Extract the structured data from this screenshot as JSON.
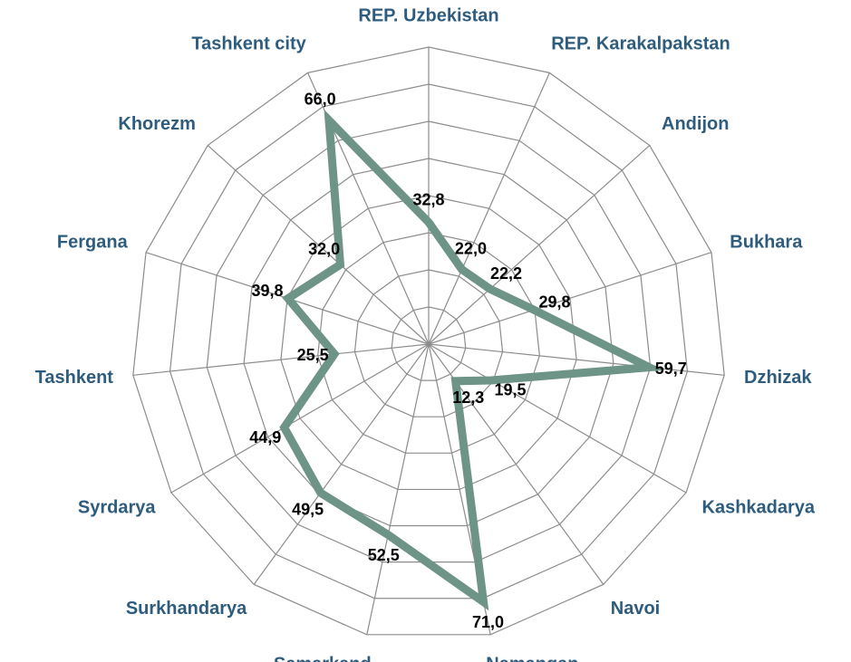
{
  "chart_data": {
    "type": "radar",
    "categories": [
      "REP. Uzbekistan",
      "REP. Karakalpakstan",
      "Andijon",
      "Bukhara",
      "Dzhizak",
      "Kashkadarya",
      "Navoi",
      "Namangan",
      "Samarkand",
      "Surkhandarya",
      "Syrdarya",
      "Tashkent",
      "Fergana",
      "Khorezm",
      "Tashkent city"
    ],
    "values": [
      32.8,
      22.0,
      22.2,
      29.8,
      59.7,
      19.5,
      12.3,
      71.0,
      52.5,
      49.5,
      44.9,
      25.5,
      39.8,
      32.0,
      66.0
    ],
    "value_labels": [
      "32,8",
      "22,0",
      "22,2",
      "29,8",
      "59,7",
      "19,5",
      "12,3",
      "71,0",
      "52,5",
      "49,5",
      "44,9",
      "25,5",
      "39,8",
      "32,0",
      "66,0"
    ],
    "color": "#6e9488",
    "rlim": [
      0,
      80
    ],
    "rticks": [
      10,
      20,
      30,
      40,
      50,
      60,
      70,
      80
    ],
    "grid": true
  }
}
